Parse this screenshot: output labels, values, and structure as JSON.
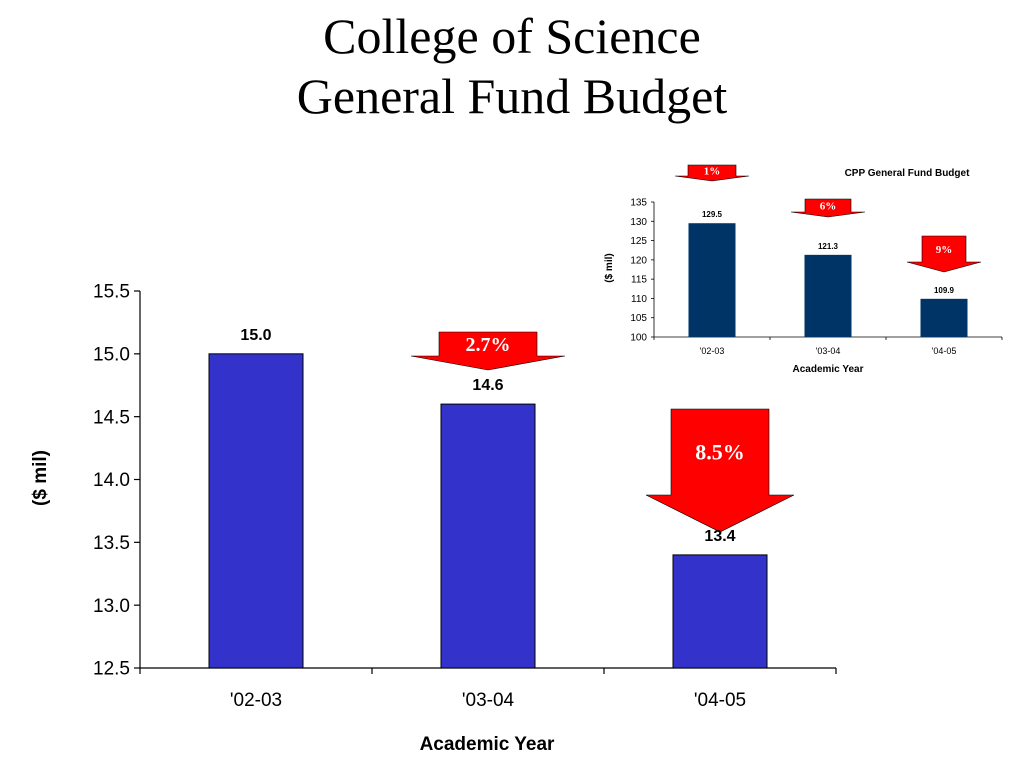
{
  "slide": {
    "title_line1": "College of Science",
    "title_line2": "General Fund Budget"
  },
  "chart_data": [
    {
      "type": "bar",
      "title": "",
      "categories": [
        "'02-03",
        "'03-04",
        "'04-05"
      ],
      "values": [
        15.0,
        14.6,
        13.4
      ],
      "value_labels": [
        "15.0",
        "14.6",
        "13.4"
      ],
      "xlabel": "Academic Year",
      "ylabel": "($ mil)",
      "ylim": [
        12.5,
        15.5
      ],
      "yticks": [
        "12.5",
        "13.0",
        "13.5",
        "14.0",
        "14.5",
        "15.0",
        "15.5"
      ],
      "grid": false,
      "bar_color": "#3333cc",
      "annotations": [
        {
          "label": "2.7%",
          "category": "'03-04"
        },
        {
          "label": "8.5%",
          "category": "'04-05"
        }
      ]
    },
    {
      "type": "bar",
      "title": "CPP General Fund Budget",
      "categories": [
        "'02-03",
        "'03-04",
        "'04-05"
      ],
      "values": [
        129.5,
        121.3,
        109.9
      ],
      "value_labels": [
        "129.5",
        "121.3",
        "109.9"
      ],
      "xlabel": "Academic Year",
      "ylabel": "($ mil)",
      "ylim": [
        100,
        135
      ],
      "yticks": [
        "100",
        "105",
        "110",
        "115",
        "120",
        "125",
        "130",
        "135"
      ],
      "grid": false,
      "bar_color": "#003366",
      "annotations": [
        {
          "label": "1%",
          "category": "'02-03"
        },
        {
          "label": "6%",
          "category": "'03-04"
        },
        {
          "label": "9%",
          "category": "'04-05"
        }
      ]
    }
  ],
  "colors": {
    "arrow_fill": "#ff0000",
    "arrow_text": "#ffffff"
  }
}
